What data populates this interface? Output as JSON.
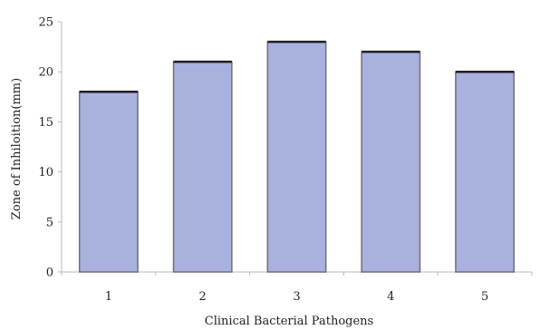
{
  "chart_data": {
    "type": "bar",
    "title": "",
    "xlabel": "Clinical Bacterial Pathogens",
    "ylabel": "Zone of Inhiloition(mm)",
    "categories": [
      "1",
      "2",
      "3",
      "4",
      "5"
    ],
    "values": [
      18,
      21,
      23,
      22,
      20
    ],
    "ylim": [
      0,
      25
    ],
    "yticks": [
      0,
      5,
      10,
      15,
      20,
      25
    ],
    "grid": false,
    "legend": "none",
    "colors": {
      "bar_fill": "#a9b1df",
      "bar_stroke": "#6e6f77",
      "bar_top": "#1f1f24",
      "axis": "#b8b8b8",
      "text": "#222222"
    }
  }
}
